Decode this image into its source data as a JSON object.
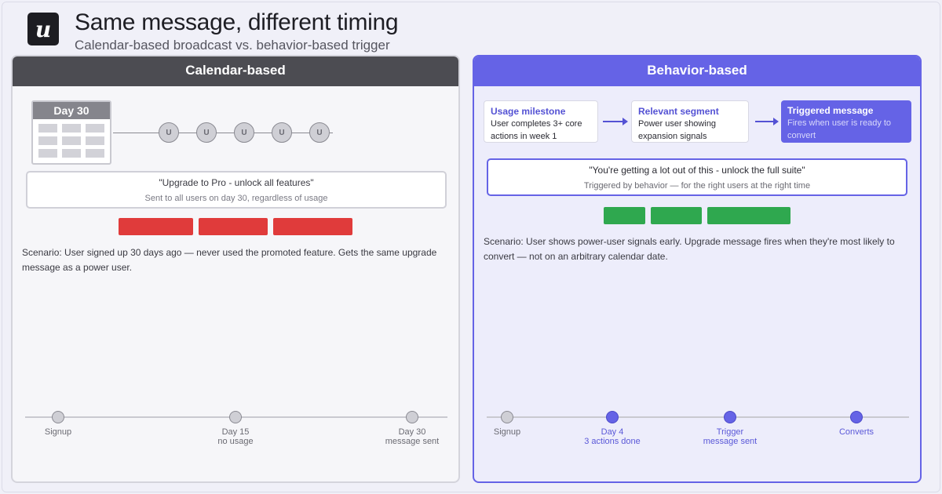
{
  "header": {
    "logo_letter": "u",
    "title": "Same message, different timing",
    "subtitle": "Calendar-based broadcast vs. behavior-based trigger"
  },
  "left": {
    "heading": "Calendar-based",
    "calendar_label": "Day 30",
    "user_marker": "U",
    "message_quote": "\"Upgrade to Pro - unlock all features\"",
    "message_sub": "Sent to all users on day 30, regardless of usage",
    "scenario": "Scenario: User signed up 30 days ago — never used the promoted feature. Gets the same upgrade message as a power user.",
    "timeline": [
      {
        "line1": "Signup",
        "line2": ""
      },
      {
        "line1": "Day 15",
        "line2": "no usage"
      },
      {
        "line1": "Day 30",
        "line2": "message sent"
      }
    ],
    "colors": {
      "bar": "#e03b3b",
      "header": "#4c4c52"
    }
  },
  "right": {
    "heading": "Behavior-based",
    "flow": [
      {
        "title": "Usage milestone",
        "body": "User completes 3+ core actions in week 1"
      },
      {
        "title": "Relevant segment",
        "body": "Power user showing expansion signals"
      },
      {
        "title": "Triggered message",
        "body": "Fires when user is ready to convert"
      }
    ],
    "message_quote": "\"You're getting a lot out of this - unlock the full suite\"",
    "message_sub": "Triggered by behavior — for the right users at the right time",
    "scenario": "Scenario: User shows power-user signals early. Upgrade message fires when they're most likely to convert — not on an arbitrary calendar date.",
    "timeline": [
      {
        "line1": "Signup",
        "line2": ""
      },
      {
        "line1": "Day 4",
        "line2": "3 actions done"
      },
      {
        "line1": "Trigger",
        "line2": "message sent"
      },
      {
        "line1": "Converts",
        "line2": ""
      }
    ],
    "colors": {
      "bar": "#2fa84f",
      "header": "#6563e6"
    }
  }
}
